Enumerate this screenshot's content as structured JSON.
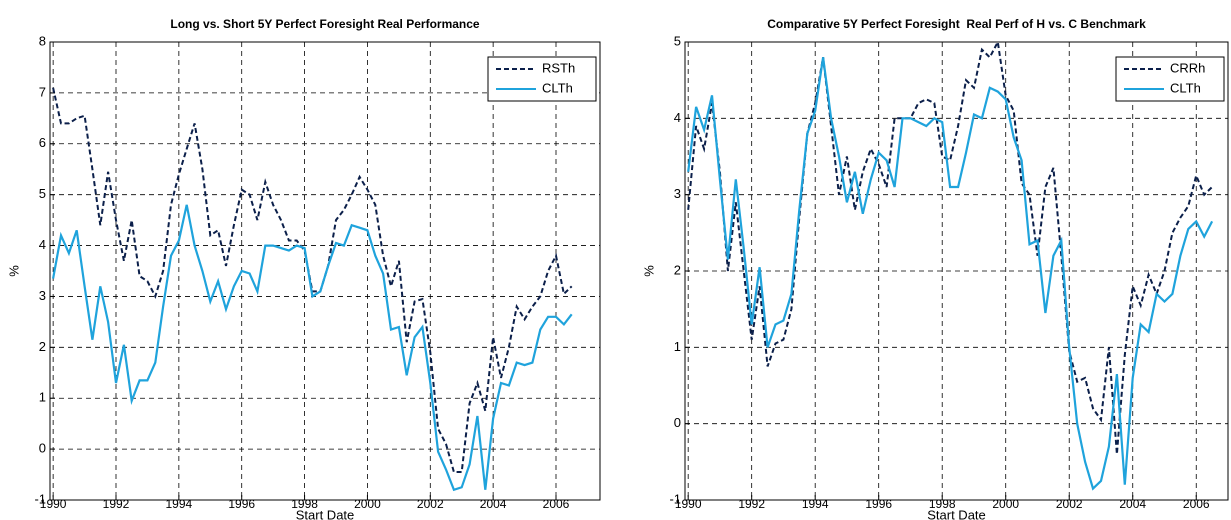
{
  "chart_data": [
    {
      "type": "line",
      "title": "Long vs. Short 5Y Perfect Foresight Real Performance",
      "xlabel": "Start Date",
      "ylabel": "%",
      "x": [
        1990,
        1990.25,
        1990.5,
        1990.75,
        1991,
        1991.25,
        1991.5,
        1991.75,
        1992,
        1992.25,
        1992.5,
        1992.75,
        1993,
        1993.25,
        1993.5,
        1993.75,
        1994,
        1994.25,
        1994.5,
        1994.75,
        1995,
        1995.25,
        1995.5,
        1995.75,
        1996,
        1996.25,
        1996.5,
        1996.75,
        1997,
        1997.25,
        1997.5,
        1997.75,
        1998,
        1998.25,
        1998.5,
        1998.75,
        1999,
        1999.25,
        1999.5,
        1999.75,
        2000,
        2000.25,
        2000.5,
        2000.75,
        2001,
        2001.25,
        2001.5,
        2001.75,
        2002,
        2002.25,
        2002.5,
        2002.75,
        2003,
        2003.25,
        2003.5,
        2003.75,
        2004,
        2004.25,
        2004.5,
        2004.75,
        2005,
        2005.25,
        2005.5,
        2005.75,
        2006,
        2006.25,
        2006.5
      ],
      "series": [
        {
          "name": "RSTh",
          "color": "#0b1f4a",
          "dash": true,
          "values": [
            7.1,
            6.4,
            6.4,
            6.5,
            6.55,
            5.5,
            4.4,
            5.45,
            4.5,
            3.7,
            4.5,
            3.4,
            3.3,
            3.0,
            3.5,
            4.8,
            5.4,
            5.9,
            6.4,
            5.5,
            4.2,
            4.3,
            3.6,
            4.4,
            5.1,
            5.0,
            4.5,
            5.25,
            4.8,
            4.5,
            4.1,
            4.1,
            3.9,
            3.1,
            3.1,
            3.6,
            4.5,
            4.7,
            5.0,
            5.35,
            5.1,
            4.8,
            3.8,
            3.2,
            3.7,
            2.1,
            2.9,
            2.95,
            1.9,
            0.4,
            0.1,
            -0.45,
            -0.45,
            0.9,
            1.3,
            0.75,
            2.2,
            1.4,
            2.0,
            2.8,
            2.55,
            2.8,
            3.0,
            3.5,
            3.8,
            3.05,
            3.2
          ]
        },
        {
          "name": "CLTh",
          "color": "#1fa3dc",
          "dash": false,
          "values": [
            3.35,
            4.2,
            3.85,
            4.3,
            3.2,
            2.15,
            3.2,
            2.5,
            1.3,
            2.05,
            0.95,
            1.35,
            1.35,
            1.7,
            2.8,
            3.8,
            4.1,
            4.8,
            4.0,
            3.5,
            2.9,
            3.3,
            2.75,
            3.2,
            3.5,
            3.45,
            3.1,
            4.0,
            4.0,
            3.95,
            3.9,
            4.0,
            3.95,
            3.0,
            3.1,
            3.6,
            4.05,
            4.0,
            4.4,
            4.35,
            4.3,
            3.8,
            3.45,
            2.35,
            2.4,
            1.45,
            2.2,
            2.4,
            1.3,
            -0.05,
            -0.4,
            -0.8,
            -0.75,
            -0.3,
            0.65,
            -0.8,
            0.6,
            1.3,
            1.25,
            1.7,
            1.65,
            1.7,
            2.35,
            2.6,
            2.6,
            2.45,
            2.65
          ]
        }
      ],
      "xlim": [
        1989.9,
        2007.4
      ],
      "xticks": [
        1990,
        1992,
        1994,
        1996,
        1998,
        2000,
        2002,
        2004,
        2006
      ],
      "ylim": [
        -1,
        8
      ],
      "yticks": [
        -1,
        0,
        1,
        2,
        3,
        4,
        5,
        6,
        7,
        8
      ],
      "grid": true,
      "legend": "northeast"
    },
    {
      "type": "line",
      "title": "Comparative 5Y Perfect Foresight  Real Perf of H vs. C Benchmark",
      "xlabel": "Start Date",
      "ylabel": "%",
      "x": [
        1990,
        1990.25,
        1990.5,
        1990.75,
        1991,
        1991.25,
        1991.5,
        1991.75,
        1992,
        1992.25,
        1992.5,
        1992.75,
        1993,
        1993.25,
        1993.5,
        1993.75,
        1994,
        1994.25,
        1994.5,
        1994.75,
        1995,
        1995.25,
        1995.5,
        1995.75,
        1996,
        1996.25,
        1996.5,
        1996.75,
        1997,
        1997.25,
        1997.5,
        1997.75,
        1998,
        1998.25,
        1998.5,
        1998.75,
        1999,
        1999.25,
        1999.5,
        1999.75,
        2000,
        2000.25,
        2000.5,
        2000.75,
        2001,
        2001.25,
        2001.5,
        2001.75,
        2002,
        2002.25,
        2002.5,
        2002.75,
        2003,
        2003.25,
        2003.5,
        2003.75,
        2004,
        2004.25,
        2004.5,
        2004.75,
        2005,
        2005.25,
        2005.5,
        2005.75,
        2006,
        2006.25,
        2006.5
      ],
      "series": [
        {
          "name": "CRRh",
          "color": "#0b1f4a",
          "dash": true,
          "values": [
            2.8,
            3.9,
            3.6,
            4.2,
            3.3,
            2.0,
            2.9,
            2.0,
            1.1,
            1.8,
            0.75,
            1.05,
            1.1,
            1.5,
            2.7,
            3.8,
            4.2,
            4.8,
            3.9,
            3.0,
            3.5,
            2.8,
            3.3,
            3.6,
            3.4,
            3.1,
            4.0,
            4.0,
            4.0,
            4.2,
            4.25,
            4.2,
            3.5,
            3.45,
            3.9,
            4.5,
            4.4,
            4.9,
            4.8,
            5.0,
            4.3,
            4.1,
            3.15,
            3.0,
            2.2,
            3.1,
            3.35,
            2.2,
            0.95,
            0.55,
            0.6,
            0.2,
            0.05,
            1.0,
            -0.4,
            0.9,
            1.8,
            1.55,
            1.95,
            1.7,
            2.0,
            2.5,
            2.7,
            2.85,
            3.25,
            3.0,
            3.1
          ]
        },
        {
          "name": "CLTh",
          "color": "#1fa3dc",
          "dash": false,
          "values": [
            3.3,
            4.15,
            3.85,
            4.3,
            3.2,
            2.15,
            3.2,
            2.3,
            1.3,
            2.05,
            1.0,
            1.3,
            1.35,
            1.7,
            2.8,
            3.8,
            4.1,
            4.8,
            4.0,
            3.5,
            2.9,
            3.3,
            2.75,
            3.2,
            3.55,
            3.45,
            3.1,
            4.0,
            4.0,
            3.95,
            3.9,
            4.0,
            3.95,
            3.1,
            3.1,
            3.55,
            4.05,
            4.0,
            4.4,
            4.35,
            4.25,
            3.75,
            3.45,
            2.35,
            2.4,
            1.45,
            2.2,
            2.4,
            1.0,
            0.0,
            -0.5,
            -0.85,
            -0.75,
            -0.3,
            0.65,
            -0.8,
            0.6,
            1.3,
            1.2,
            1.7,
            1.6,
            1.7,
            2.2,
            2.55,
            2.65,
            2.45,
            2.65
          ]
        }
      ],
      "xlim": [
        1989.9,
        2007.0
      ],
      "xticks": [
        1990,
        1992,
        1994,
        1996,
        1998,
        2000,
        2002,
        2004,
        2006
      ],
      "ylim": [
        -1,
        5
      ],
      "yticks": [
        -1,
        0,
        1,
        2,
        3,
        4,
        5
      ],
      "grid": true,
      "legend": "northeast"
    }
  ]
}
